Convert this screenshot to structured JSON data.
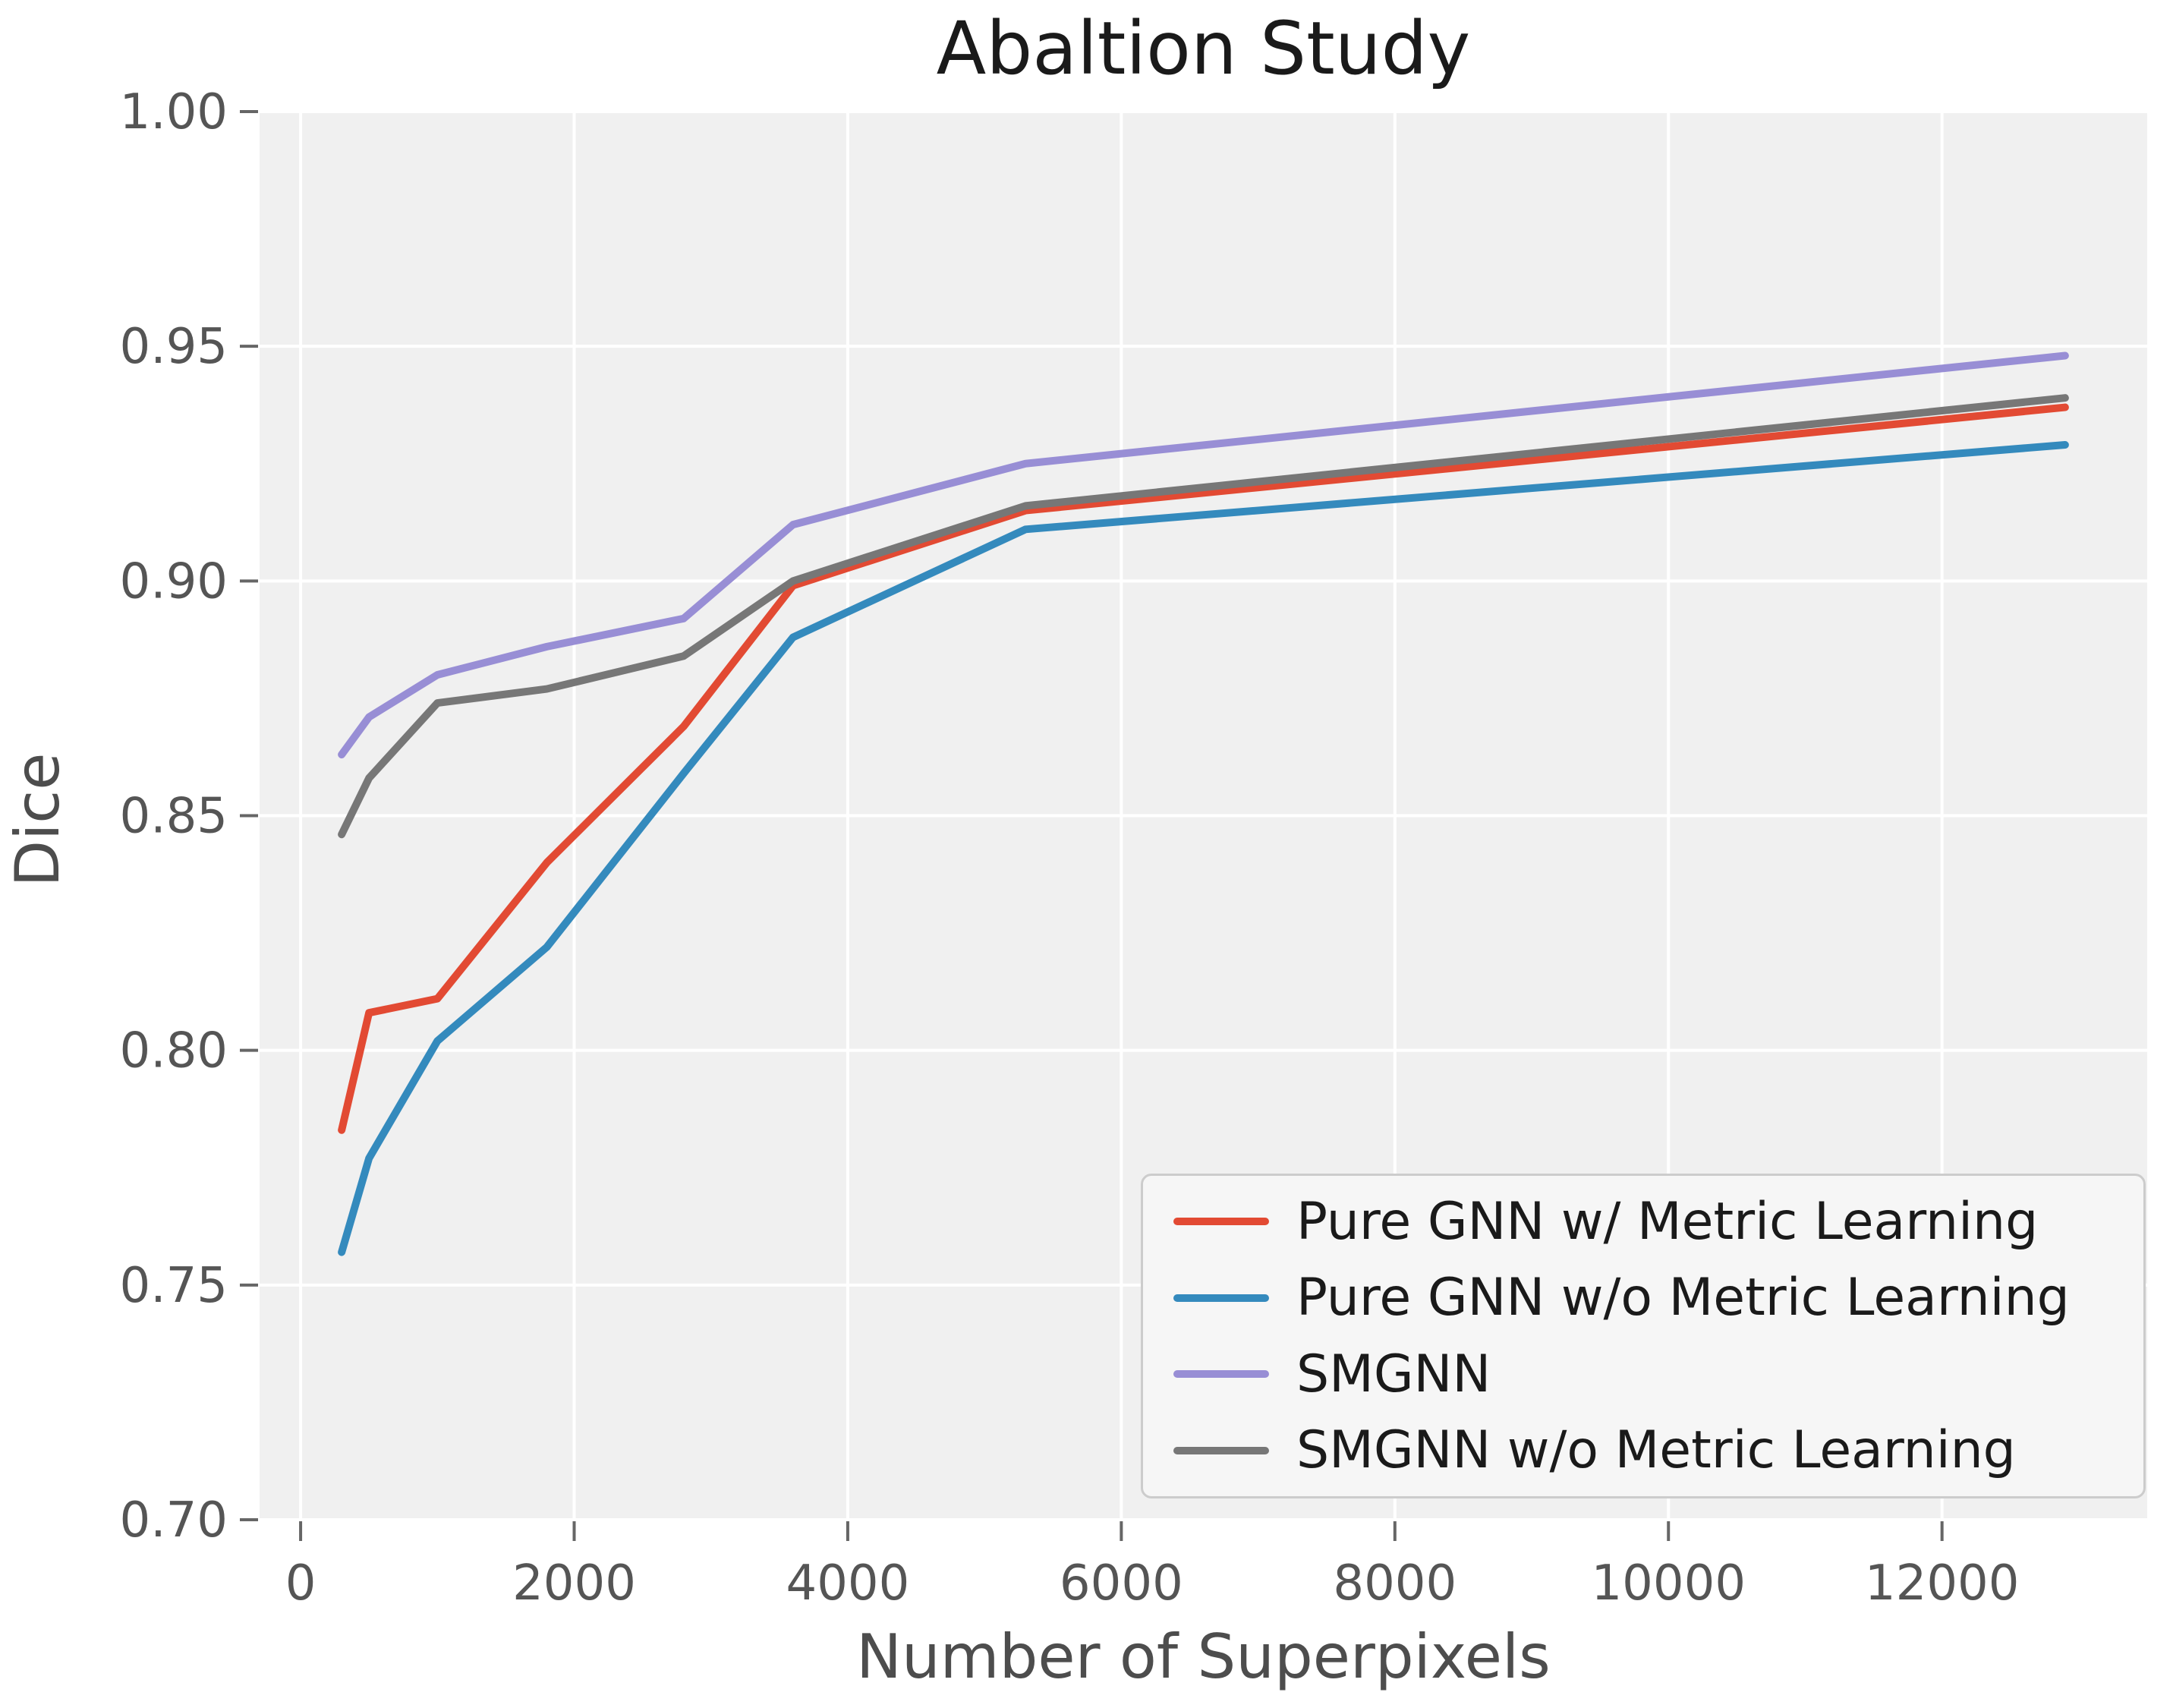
{
  "figure": {
    "title": "Abaltion Study",
    "background_color": "#ffffff",
    "plot_background_color": "#f0f0f0",
    "grid_color": "#ffffff",
    "tick_color": "#666666",
    "tick_label_color": "#555555",
    "axis_label_color": "#4d4d4d",
    "title_color": "#1a1a1a",
    "legend_background_color": "#f6f6f6",
    "legend_border_color": "#cccccc"
  },
  "chart_data": {
    "type": "line",
    "title": "Abaltion Study",
    "xlabel": "Number of Superpixels",
    "ylabel": "Dice",
    "xlim": [
      -300,
      13500
    ],
    "ylim": [
      0.7,
      1.0
    ],
    "xticks": [
      0,
      2000,
      4000,
      6000,
      8000,
      10000,
      12000
    ],
    "xtick_labels": [
      "0",
      "2000",
      "4000",
      "6000",
      "8000",
      "10000",
      "12000"
    ],
    "yticks": [
      0.7,
      0.75,
      0.8,
      0.85,
      0.9,
      0.95,
      1.0
    ],
    "ytick_labels": [
      "0.70",
      "0.75",
      "0.80",
      "0.85",
      "0.90",
      "0.95",
      "1.00"
    ],
    "grid": true,
    "legend_position": "lower right",
    "x": [
      300,
      500,
      1000,
      1800,
      2800,
      3600,
      5300,
      12900
    ],
    "series": [
      {
        "name": "Pure GNN w/ Metric Learning",
        "color": "#e24a33",
        "values": [
          0.783,
          0.808,
          0.811,
          0.84,
          0.869,
          0.899,
          0.915,
          0.937
        ]
      },
      {
        "name": "Pure GNN w/o Metric Learning",
        "color": "#348abd",
        "values": [
          0.757,
          0.777,
          0.802,
          0.822,
          0.859,
          0.888,
          0.911,
          0.929
        ]
      },
      {
        "name": "SMGNN",
        "color": "#988ed5",
        "values": [
          0.863,
          0.871,
          0.88,
          0.886,
          0.892,
          0.912,
          0.925,
          0.948
        ]
      },
      {
        "name": "SMGNN w/o Metric Learning",
        "color": "#777777",
        "values": [
          0.846,
          0.858,
          0.874,
          0.877,
          0.884,
          0.9,
          0.916,
          0.939
        ]
      }
    ]
  }
}
